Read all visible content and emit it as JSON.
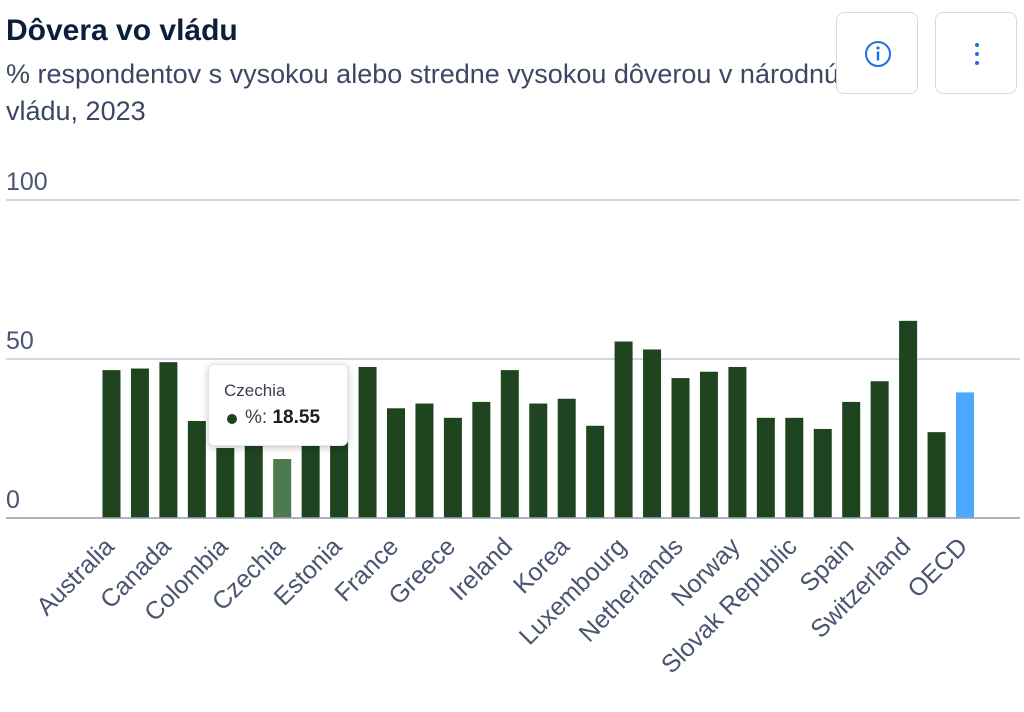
{
  "header": {
    "title": "Dôvera vo vládu",
    "subtitle": "% respondentov s vysokou alebo stredne vysokou dôverou v národnú vládu, 2023"
  },
  "toolbar": {
    "info_icon": "info-circle-icon",
    "menu_icon": "vertical-ellipsis-icon"
  },
  "tooltip": {
    "country": "Czechia",
    "label": "%:",
    "value": "18.55"
  },
  "chart_data": {
    "type": "bar",
    "title": "Dôvera vo vládu",
    "subtitle": "% respondentov s vysokou alebo stredne vysokou dôverou v národnú vládu, 2023",
    "xlabel": "",
    "ylabel": "",
    "ylim": [
      0,
      100
    ],
    "yticks": [
      0,
      50,
      100
    ],
    "grid": true,
    "categories": [
      "Australia",
      "",
      "Canada",
      "",
      "Colombia",
      "",
      "Czechia",
      "",
      "Estonia",
      "",
      "France",
      "",
      "Greece",
      "",
      "Ireland",
      "",
      "Korea",
      "",
      "Luxembourg",
      "",
      "Netherlands",
      "",
      "Norway",
      "",
      "Slovak Republic",
      "",
      "Spain",
      "",
      "Switzerland",
      "",
      "OECD"
    ],
    "values": [
      46.5,
      47,
      49,
      30.5,
      22,
      23,
      18.55,
      23,
      24,
      47.5,
      34.5,
      36,
      31.5,
      36.5,
      46.5,
      36,
      37.5,
      29,
      55.5,
      53,
      44,
      46,
      47.5,
      31.5,
      31.5,
      28,
      36.5,
      43,
      62,
      27,
      39.5
    ],
    "highlighted": "Czechia",
    "colors": {
      "bar": "#1f4420",
      "bar_hover": "#4d7a4f",
      "oecd": "#4aa8ff",
      "grid": "#c5cbd6",
      "axis_text": "#4b5470"
    }
  }
}
